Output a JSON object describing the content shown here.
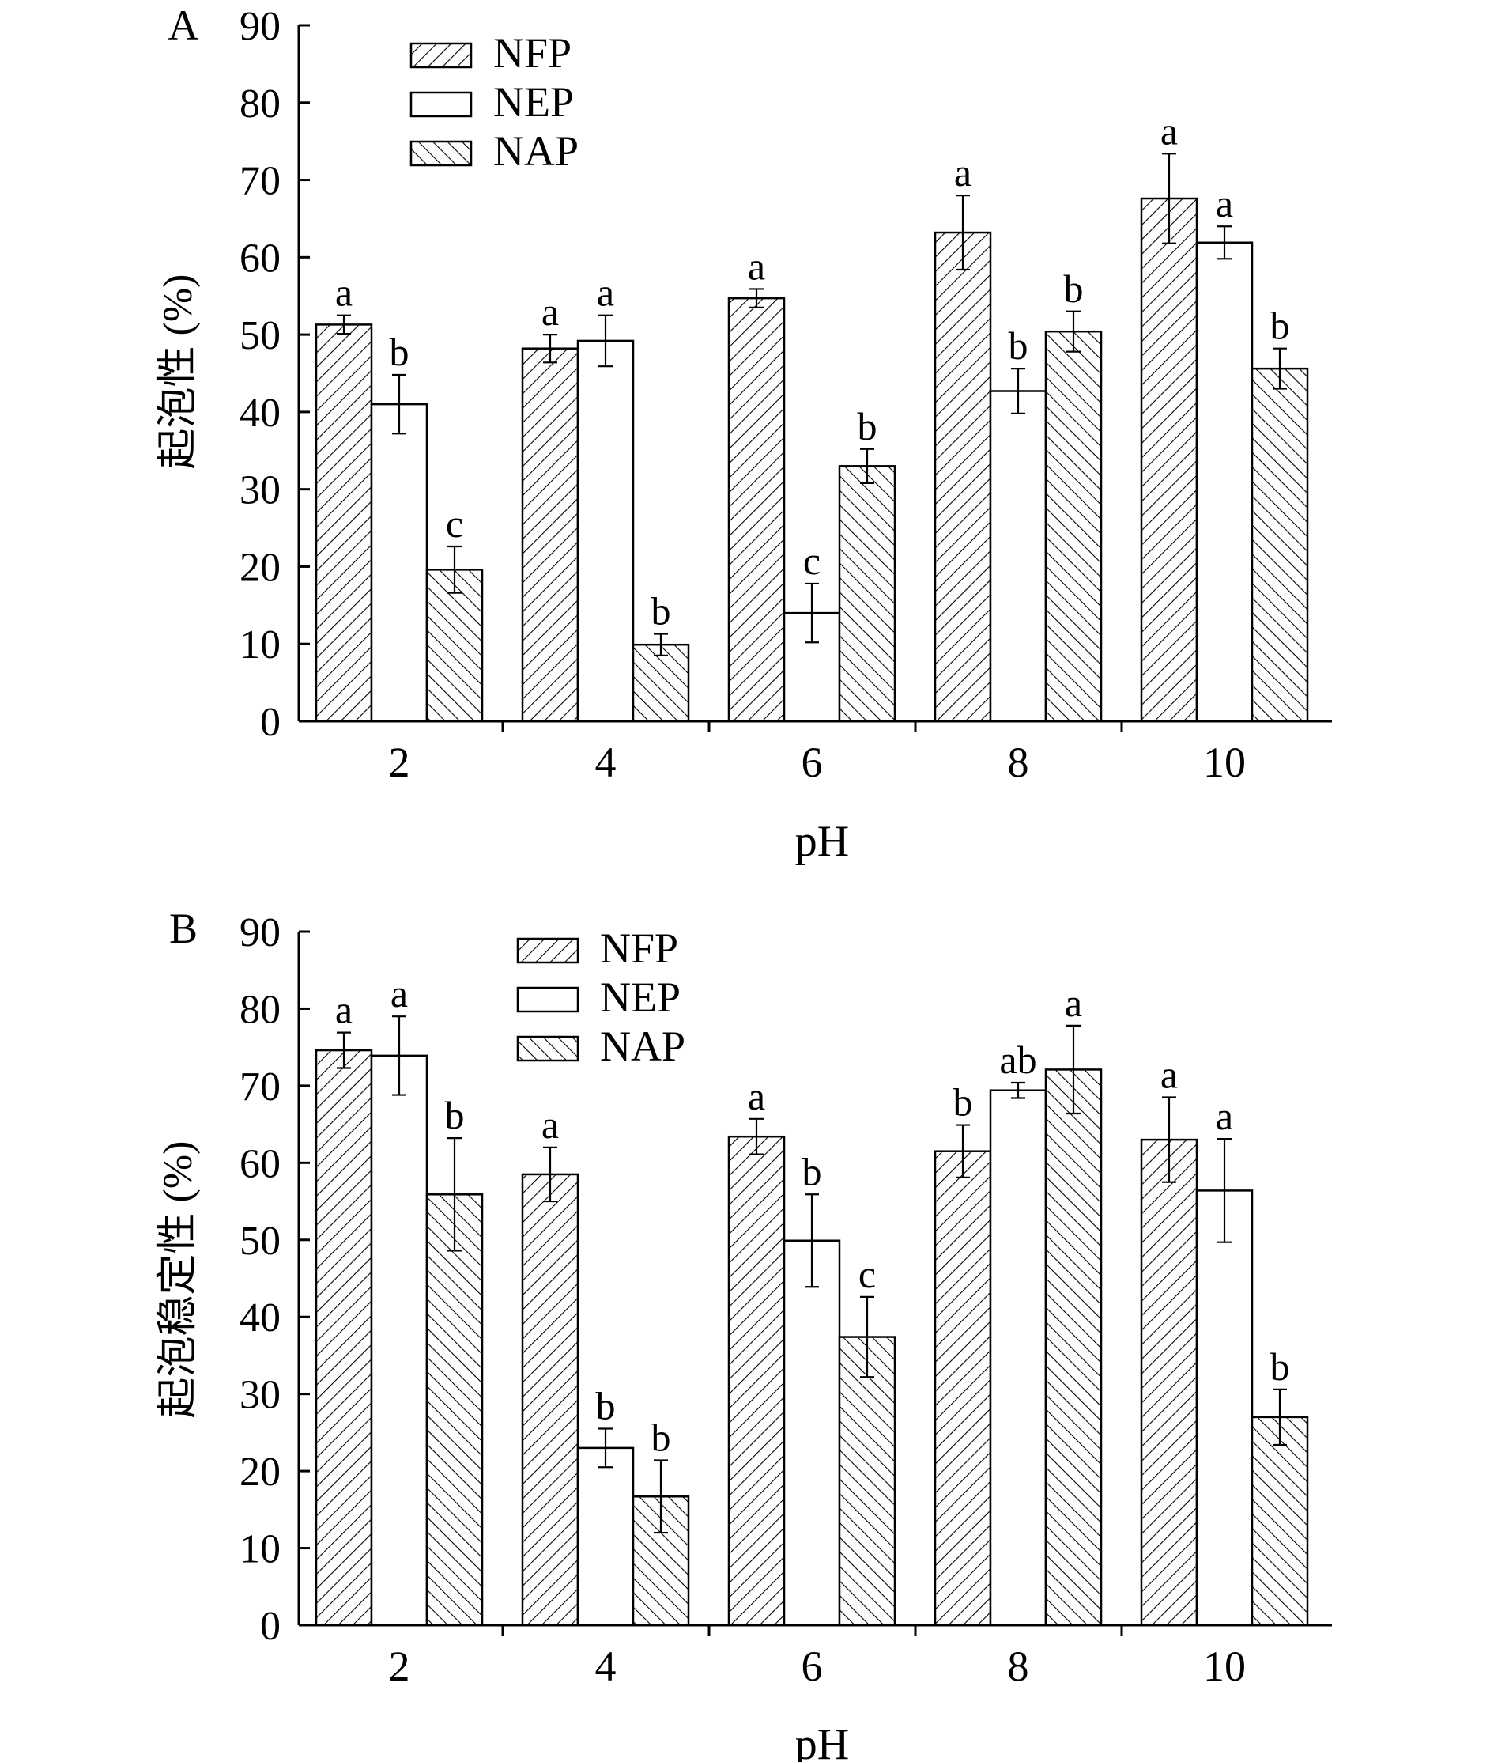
{
  "chart_data": [
    {
      "panel_label": "A",
      "type": "bar",
      "ylabel": "起泡性 (%)",
      "xlabel": "pH",
      "ylim": [
        0,
        90
      ],
      "yticks": [
        0,
        10,
        20,
        30,
        40,
        50,
        60,
        70,
        80,
        90
      ],
      "categories": [
        "2",
        "4",
        "6",
        "8",
        "10"
      ],
      "legend_position": "top-left",
      "series": [
        {
          "name": "NFP",
          "pattern": "forward-hatch",
          "values": [
            51.3,
            48.2,
            54.7,
            63.2,
            67.6
          ],
          "errors": [
            1.2,
            1.8,
            1.2,
            4.8,
            5.8
          ],
          "labels": [
            "a",
            "a",
            "a",
            "a",
            "a"
          ]
        },
        {
          "name": "NEP",
          "pattern": "open",
          "values": [
            41.0,
            49.2,
            14.0,
            42.7,
            61.9
          ],
          "errors": [
            3.8,
            3.3,
            3.8,
            2.9,
            2.1
          ],
          "labels": [
            "b",
            "a",
            "c",
            "b",
            "a"
          ]
        },
        {
          "name": "NAP",
          "pattern": "back-hatch",
          "values": [
            19.6,
            9.9,
            33.0,
            50.4,
            45.6
          ],
          "errors": [
            3.0,
            1.4,
            2.2,
            2.6,
            2.6
          ],
          "labels": [
            "c",
            "b",
            "b",
            "b",
            "b"
          ]
        }
      ]
    },
    {
      "panel_label": "B",
      "type": "bar",
      "ylabel": "起泡稳定性 (%)",
      "xlabel": "pH",
      "ylim": [
        0,
        90
      ],
      "yticks": [
        0,
        10,
        20,
        30,
        40,
        50,
        60,
        70,
        80,
        90
      ],
      "categories": [
        "2",
        "4",
        "6",
        "8",
        "10"
      ],
      "legend_position": "top-center",
      "series": [
        {
          "name": "NFP",
          "pattern": "forward-hatch",
          "values": [
            74.6,
            58.5,
            63.4,
            61.5,
            63.0
          ],
          "errors": [
            2.3,
            3.5,
            2.3,
            3.4,
            5.5
          ],
          "labels": [
            "a",
            "a",
            "a",
            "b",
            "a"
          ]
        },
        {
          "name": "NEP",
          "pattern": "open",
          "values": [
            73.9,
            23.0,
            49.9,
            69.4,
            56.4
          ],
          "errors": [
            5.1,
            2.5,
            6.0,
            1.0,
            6.7
          ],
          "labels": [
            "a",
            "b",
            "b",
            "ab",
            "a"
          ]
        },
        {
          "name": "NAP",
          "pattern": "back-hatch",
          "values": [
            55.9,
            16.7,
            37.4,
            72.1,
            27.0
          ],
          "errors": [
            7.3,
            4.7,
            5.2,
            5.7,
            3.6
          ],
          "labels": [
            "b",
            "b",
            "c",
            "a",
            "b"
          ]
        }
      ]
    }
  ]
}
